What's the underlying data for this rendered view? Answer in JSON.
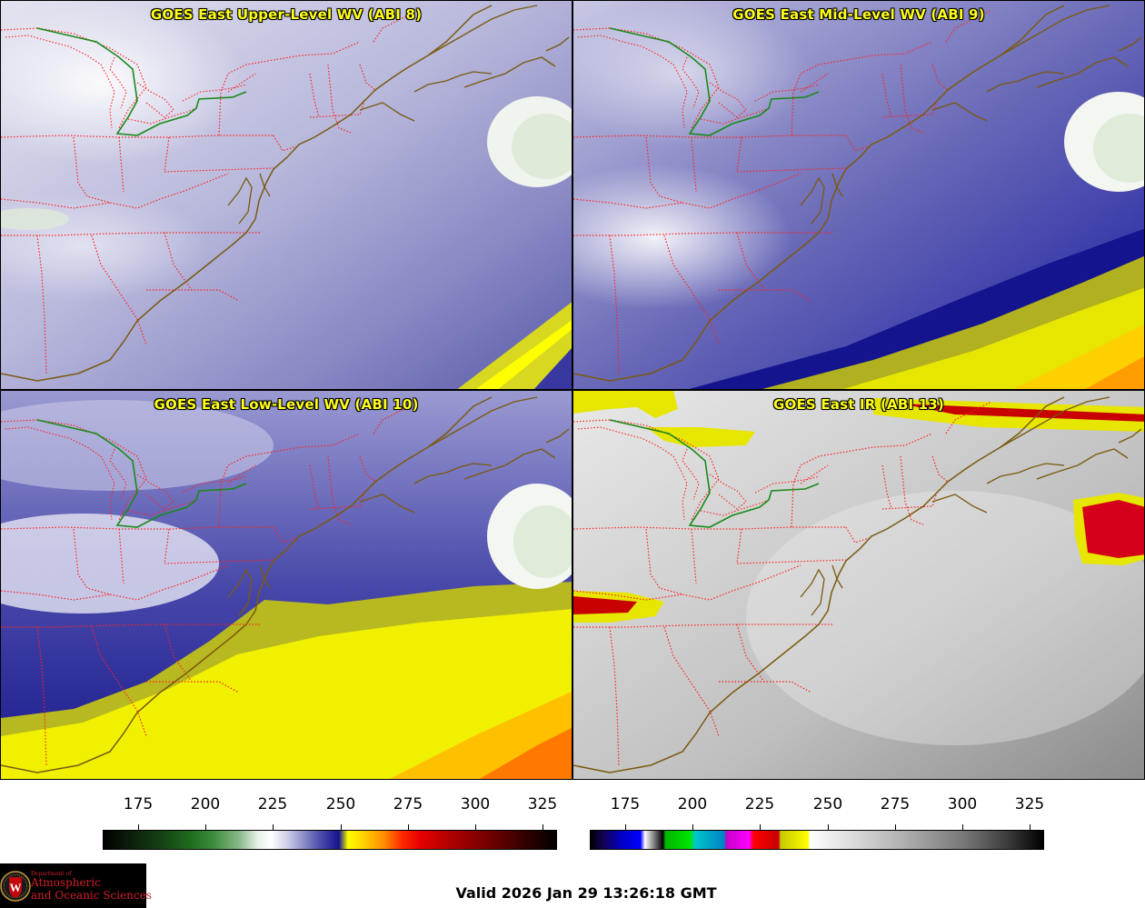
{
  "panels": [
    {
      "title": "GOES East Upper-Level WV (ABI 8)",
      "palette": "wv",
      "moisture": "upper"
    },
    {
      "title": "GOES East Mid-Level WV (ABI 9)",
      "palette": "wv",
      "moisture": "mid"
    },
    {
      "title": "GOES East Low-Level WV (ABI 10)",
      "palette": "wv",
      "moisture": "low"
    },
    {
      "title": "GOES East IR (ABI 13)",
      "palette": "ir",
      "moisture": "ir"
    }
  ],
  "colorbars": {
    "wv": {
      "ticks": [
        "175",
        "200",
        "225",
        "250",
        "275",
        "300",
        "325"
      ]
    },
    "ir": {
      "ticks": [
        "175",
        "200",
        "225",
        "250",
        "275",
        "300",
        "325"
      ]
    }
  },
  "colors": {
    "wv_dry": "#ffff00",
    "wv_moist": "#141490",
    "ir_cold_top": "#d4001a",
    "state_borders": "#ff2020",
    "coastline": "#7a5a10",
    "lake_boundary": "#1a8a1a"
  },
  "logo": {
    "line1": "Department of",
    "line2": "Atmospheric",
    "line3": "and Oceanic Sciences",
    "seal_letter": "W"
  },
  "footer": {
    "valid": "Valid 2026 Jan 29 13:26:18 GMT"
  }
}
